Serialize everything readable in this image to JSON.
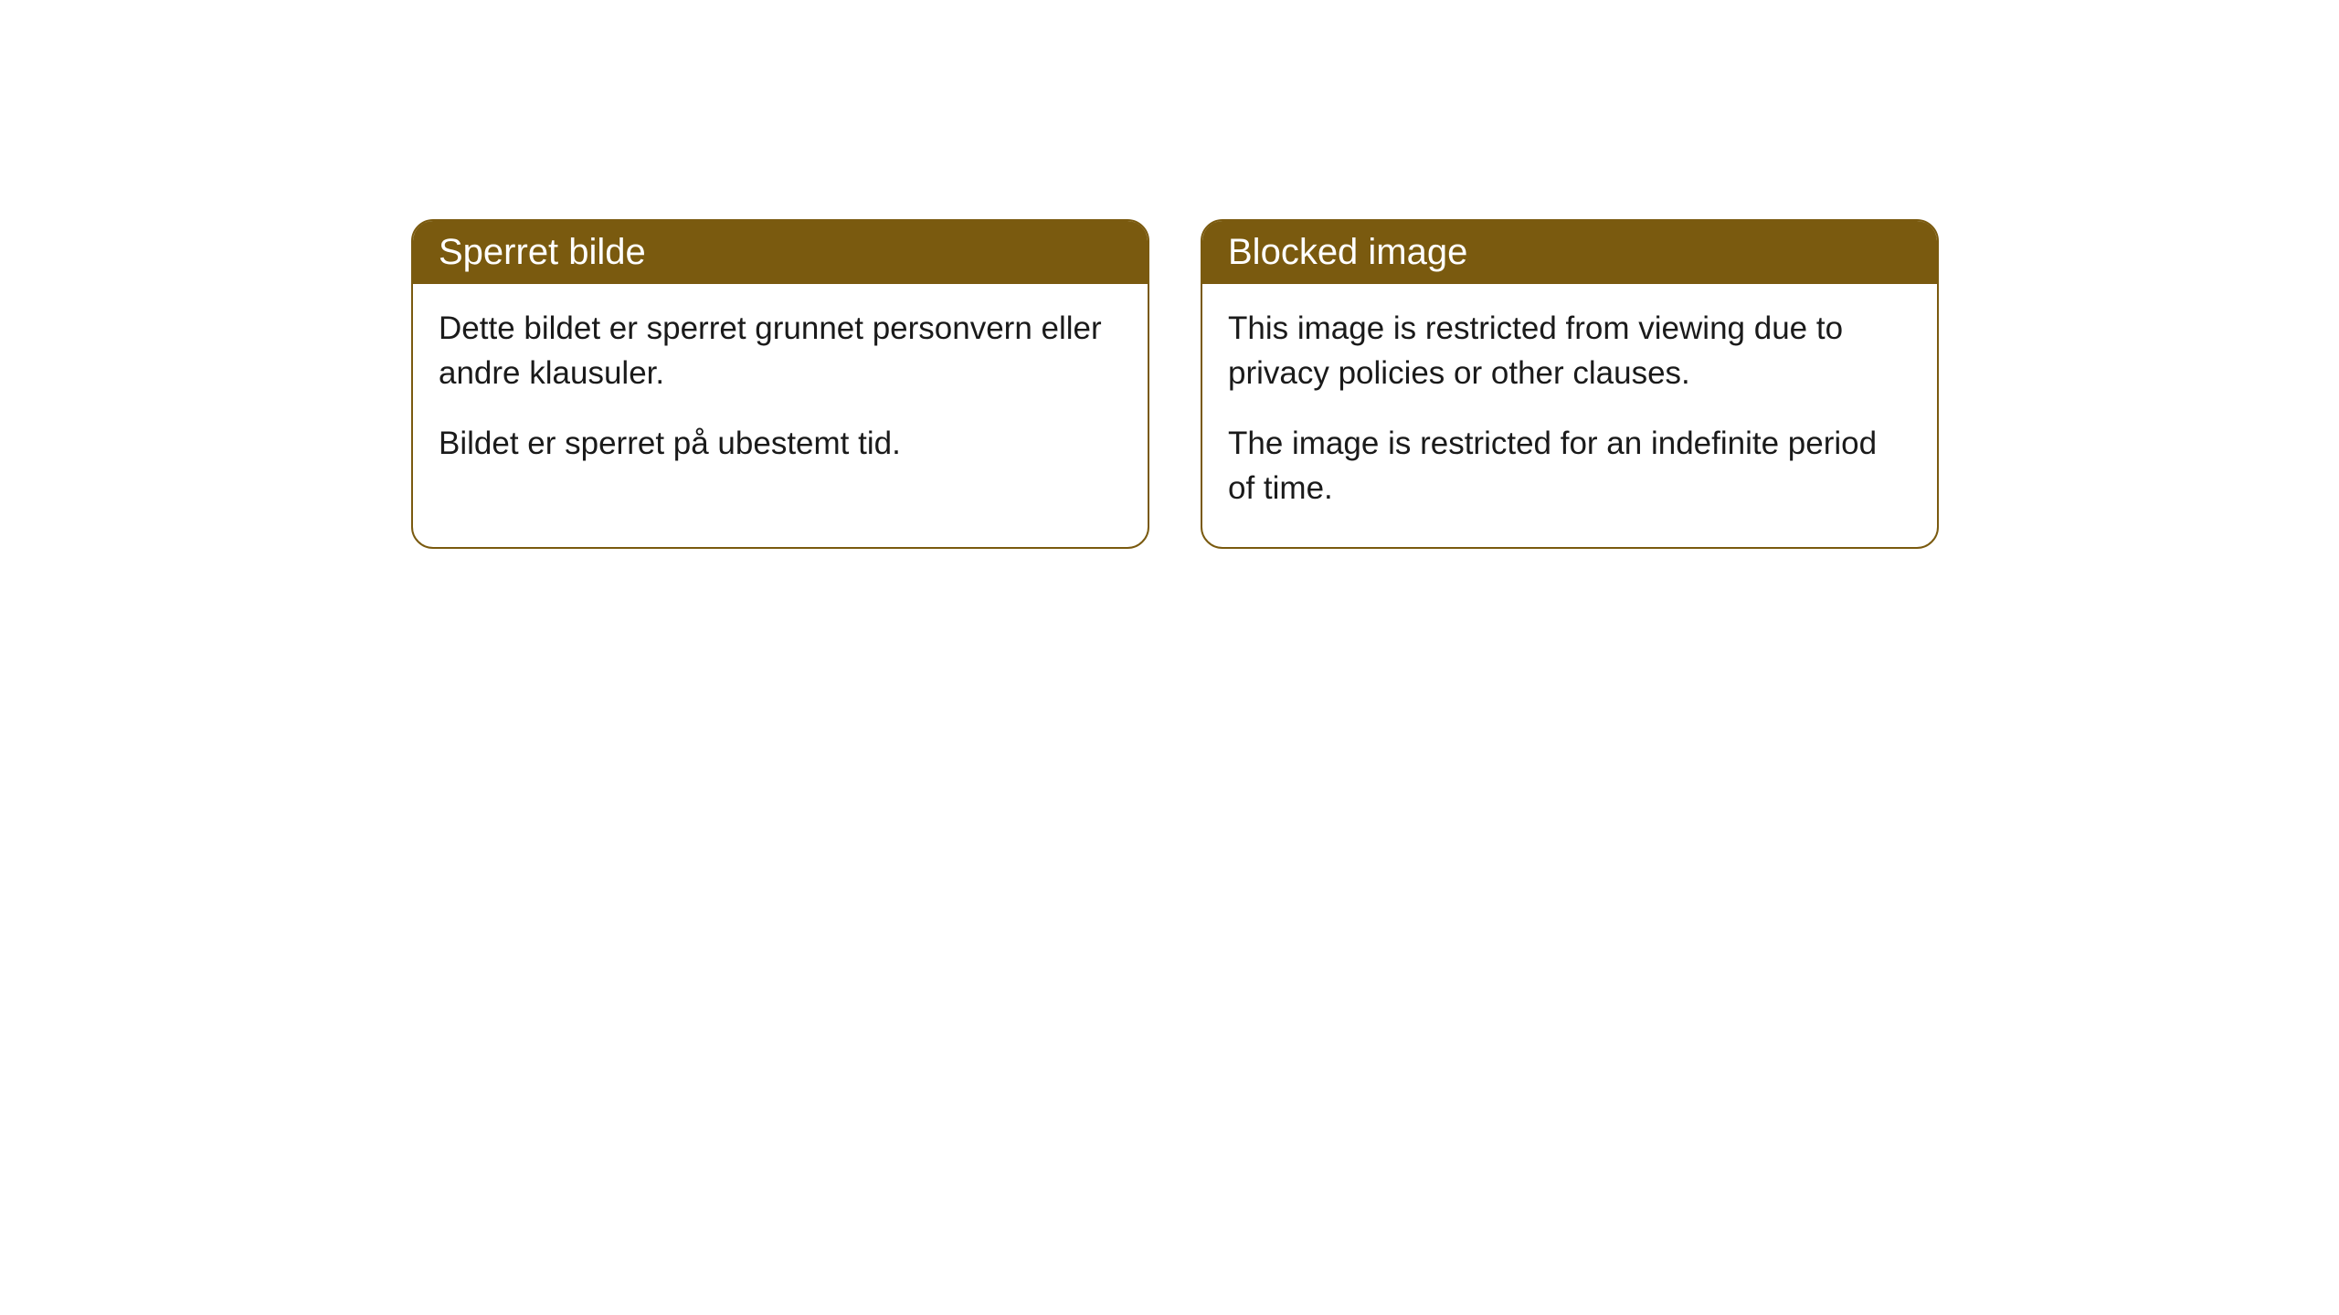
{
  "cards": [
    {
      "title": "Sperret bilde",
      "paragraph1": "Dette bildet er sperret grunnet personvern eller andre klausuler.",
      "paragraph2": "Bildet er sperret på ubestemt tid."
    },
    {
      "title": "Blocked image",
      "paragraph1": "This image is restricted from viewing due to privacy policies or other clauses.",
      "paragraph2": "The image is restricted for an indefinite period of time."
    }
  ],
  "style": {
    "header_bg_color": "#7a5a0f",
    "header_text_color": "#ffffff",
    "border_color": "#7a5a0f",
    "body_bg_color": "#ffffff",
    "body_text_color": "#1a1a1a",
    "border_radius": 24,
    "title_fontsize": 40,
    "body_fontsize": 35
  }
}
